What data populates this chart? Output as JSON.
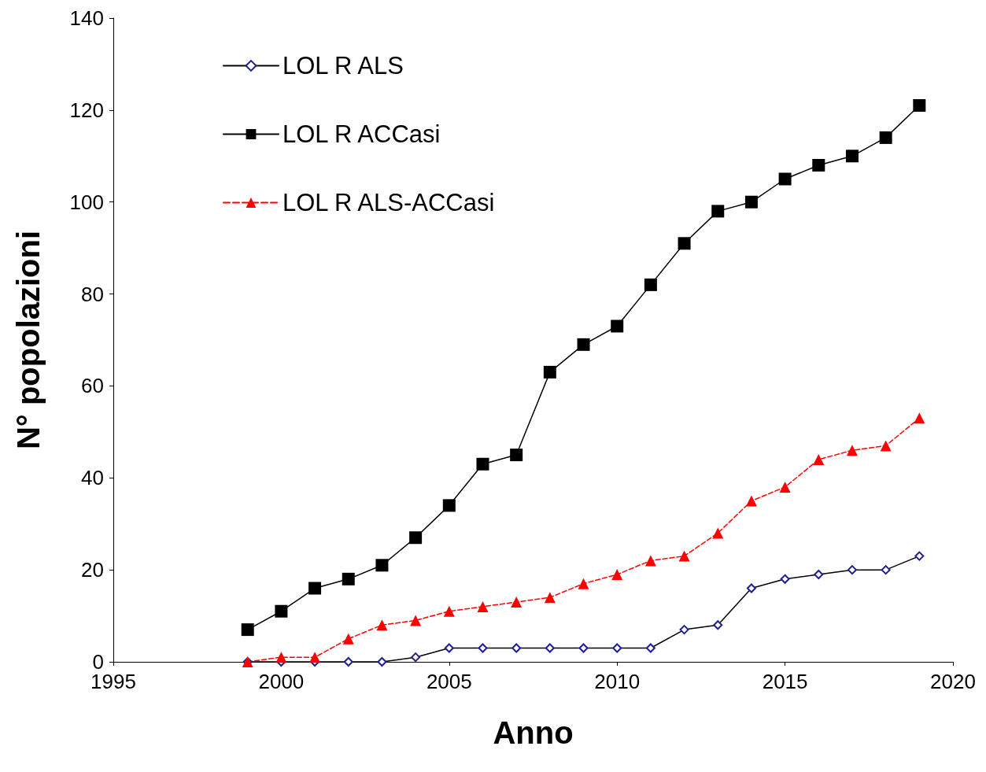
{
  "chart_data": {
    "type": "line",
    "xlabel": "Anno",
    "ylabel": "N° popolazioni",
    "x": [
      1999,
      2000,
      2001,
      2002,
      2003,
      2004,
      2005,
      2006,
      2007,
      2008,
      2009,
      2010,
      2011,
      2012,
      2013,
      2014,
      2015,
      2016,
      2017,
      2018,
      2019
    ],
    "series": [
      {
        "name": "LOL R ALS",
        "color": "#1f1f8f",
        "marker": "diamond",
        "line_style": "solid",
        "values": [
          0,
          0,
          0,
          0,
          0,
          1,
          3,
          3,
          3,
          3,
          3,
          3,
          3,
          7,
          8,
          16,
          18,
          19,
          20,
          20,
          23
        ]
      },
      {
        "name": "LOL R ACCasi",
        "color": "#000000",
        "marker": "square",
        "line_style": "solid",
        "values": [
          7,
          11,
          16,
          18,
          21,
          27,
          34,
          43,
          45,
          63,
          69,
          73,
          82,
          91,
          98,
          100,
          105,
          108,
          110,
          114,
          121
        ]
      },
      {
        "name": "LOL R ALS-ACCasi",
        "color": "#ff0000",
        "marker": "triangle",
        "line_style": "dashed",
        "values": [
          0,
          1,
          1,
          5,
          8,
          9,
          11,
          12,
          13,
          14,
          17,
          19,
          22,
          23,
          28,
          35,
          38,
          44,
          46,
          47,
          53
        ]
      }
    ],
    "xlim": [
      1995,
      2020
    ],
    "xticks": [
      1995,
      2000,
      2005,
      2010,
      2015,
      2020
    ],
    "ylim": [
      0,
      140
    ],
    "yticks": [
      0,
      20,
      40,
      60,
      80,
      100,
      120,
      140
    ],
    "grid": false,
    "legend": "top left"
  }
}
